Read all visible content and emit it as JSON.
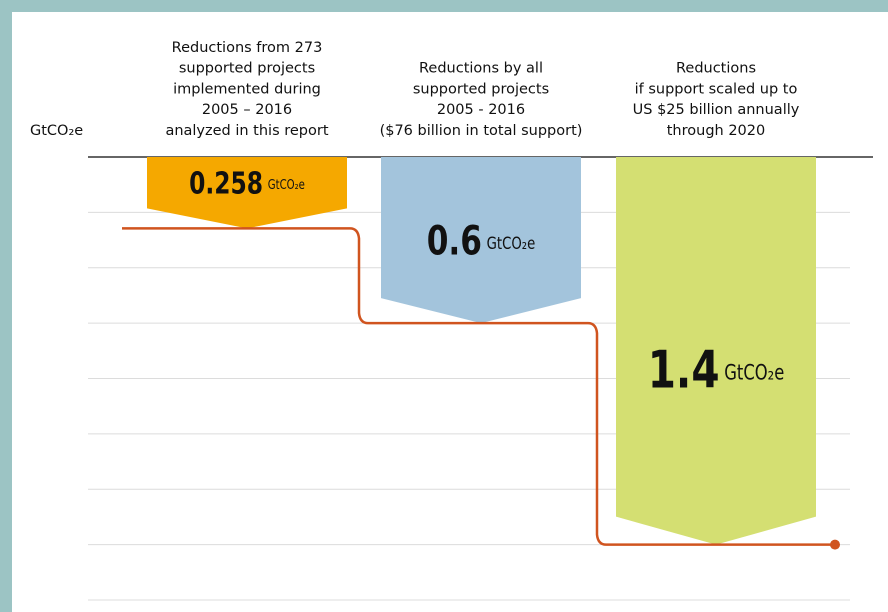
{
  "chart_data": {
    "type": "bar",
    "y_label": "GtCO₂e",
    "unit": "GtCO₂e",
    "categories": [
      [
        "Reductions from 273",
        "supported projects",
        "implemented during",
        "2005 – 2016",
        "analyzed in this report"
      ],
      [
        "Reductions by all",
        "supported projects",
        "2005 - 2016",
        "($76 billion in total support)"
      ],
      [
        "Reductions",
        "if support scaled up to",
        "US $25 billion annually",
        "through 2020"
      ]
    ],
    "values": [
      0.258,
      0.6,
      1.4
    ],
    "colors": [
      "#f5a800",
      "#a3c4dc",
      "#d4df72"
    ],
    "line_color": "#d0541f",
    "ylim": [
      0,
      1.6
    ],
    "yticks": [
      0,
      0.2,
      0.4,
      0.6,
      0.8,
      1.0,
      1.2,
      1.4,
      1.6
    ],
    "y_inverted": true,
    "grid": true
  }
}
